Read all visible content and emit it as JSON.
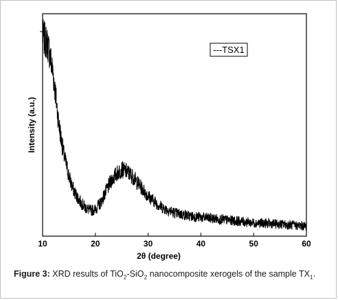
{
  "chart_data": {
    "type": "line",
    "xlabel": "2θ (degree)",
    "ylabel": "Intensity (a.u.)",
    "xlim": [
      10,
      60
    ],
    "xticks": [
      10,
      20,
      30,
      40,
      50,
      60
    ],
    "yticks_labeled": false,
    "legend": {
      "label": "---TSX1",
      "placement": "top-right"
    },
    "series": [
      {
        "name": "TSX1",
        "color": "#000000",
        "x": [
          10,
          10.5,
          11,
          11.5,
          12,
          12.5,
          13,
          13.5,
          14,
          14.5,
          15,
          15.5,
          16,
          17,
          18,
          19,
          20,
          21,
          22,
          23,
          24,
          25,
          26,
          27,
          28,
          29,
          30,
          31,
          32,
          33,
          34,
          35,
          36,
          38,
          40,
          42,
          44,
          46,
          48,
          50,
          52,
          54,
          56,
          58,
          60
        ],
        "y": [
          0.9,
          0.88,
          0.86,
          0.8,
          0.73,
          0.63,
          0.52,
          0.44,
          0.37,
          0.32,
          0.27,
          0.23,
          0.2,
          0.16,
          0.13,
          0.115,
          0.12,
          0.15,
          0.2,
          0.25,
          0.28,
          0.3,
          0.29,
          0.27,
          0.24,
          0.21,
          0.18,
          0.16,
          0.14,
          0.125,
          0.115,
          0.105,
          0.1,
          0.09,
          0.085,
          0.08,
          0.075,
          0.07,
          0.065,
          0.06,
          0.058,
          0.055,
          0.052,
          0.048,
          0.045
        ]
      }
    ]
  },
  "caption": {
    "label": "Figure 3:",
    "text_1": " XRD results of TiO",
    "sub_1": "2",
    "text_2": "-SiO",
    "sub_2": "2",
    "text_3": " nanocomposite xerogels of the sample TX",
    "sub_3": "1",
    "text_4": "."
  }
}
